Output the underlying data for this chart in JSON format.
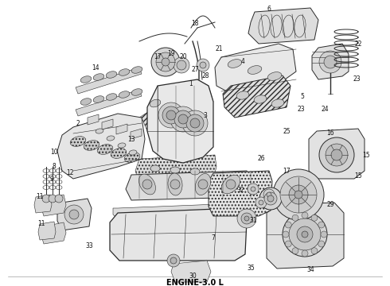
{
  "title": "ENGINE-3.0 L",
  "title_fontsize": 7,
  "title_fontweight": "bold",
  "bg_color": "#ffffff",
  "fig_width": 4.9,
  "fig_height": 3.6,
  "dpi": 100,
  "ec": "#2a2a2a",
  "fc_base": "#f5f5f5",
  "fc_mid": "#e0e0e0",
  "fc_dark": "#c8c8c8",
  "fc_vdark": "#aaaaaa"
}
